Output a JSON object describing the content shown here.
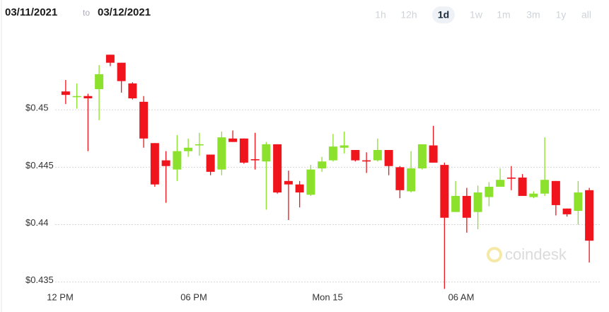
{
  "ui": {
    "date_from": "03/11/2021",
    "date_sep": "to",
    "date_to": "03/12/2021",
    "ranges": [
      "1h",
      "12h",
      "1d",
      "1w",
      "1m",
      "3m",
      "1y",
      "all"
    ],
    "active_range": "1d",
    "watermark": "coindesk"
  },
  "chart_data": {
    "type": "candlestick",
    "x": [
      0.25,
      0.75,
      1.25,
      1.75,
      2.25,
      2.75,
      3.25,
      3.75,
      4.25,
      4.75,
      5.25,
      5.75,
      6.25,
      6.75,
      7.25,
      7.75,
      8.25,
      8.75,
      9.25,
      9.75,
      10.25,
      10.75,
      11.25,
      11.75,
      12.25,
      12.75,
      13.25,
      13.75,
      14.25,
      14.75,
      15.25,
      15.75,
      16.25,
      16.75,
      17.25,
      17.75,
      18.25,
      18.75,
      19.25,
      19.75,
      20.25,
      20.75,
      21.25,
      21.75,
      22.25,
      22.75,
      23.25,
      23.75
    ],
    "open": [
      0.4516,
      0.4511,
      0.4512,
      0.4518,
      0.4548,
      0.4541,
      0.4523,
      0.4507,
      0.4471,
      0.4456,
      0.4448,
      0.4464,
      0.4469,
      0.4461,
      0.4448,
      0.4475,
      0.4475,
      0.4457,
      0.4455,
      0.447,
      0.4438,
      0.4435,
      0.4426,
      0.4449,
      0.4456,
      0.4467,
      0.4465,
      0.4456,
      0.4456,
      0.4465,
      0.445,
      0.4429,
      0.4449,
      0.4469,
      0.4452,
      0.4411,
      0.4425,
      0.4411,
      0.4424,
      0.4433,
      0.4441,
      0.4441,
      0.4424,
      0.4427,
      0.4438,
      0.4414,
      0.4412,
      0.443
    ],
    "high": [
      0.4526,
      0.4523,
      0.4514,
      0.4539,
      0.4548,
      0.4541,
      0.4524,
      0.4512,
      0.4471,
      0.4464,
      0.4478,
      0.4475,
      0.448,
      0.4461,
      0.4481,
      0.4482,
      0.4475,
      0.448,
      0.4472,
      0.447,
      0.4447,
      0.4438,
      0.4452,
      0.4459,
      0.4479,
      0.4481,
      0.4465,
      0.4463,
      0.4475,
      0.4465,
      0.4451,
      0.4464,
      0.447,
      0.4486,
      0.4454,
      0.4438,
      0.4432,
      0.4434,
      0.4437,
      0.4449,
      0.4451,
      0.4444,
      0.4429,
      0.4476,
      0.4438,
      0.4414,
      0.4438,
      0.4432
    ],
    "low": [
      0.4505,
      0.4501,
      0.4464,
      0.4491,
      0.4538,
      0.4515,
      0.4509,
      0.4467,
      0.4433,
      0.4419,
      0.4438,
      0.4459,
      0.446,
      0.4443,
      0.4443,
      0.4472,
      0.4453,
      0.4448,
      0.4413,
      0.4427,
      0.4404,
      0.4415,
      0.4425,
      0.4446,
      0.4455,
      0.4462,
      0.4455,
      0.4445,
      0.4455,
      0.4443,
      0.4423,
      0.4428,
      0.4448,
      0.4454,
      0.4344,
      0.4411,
      0.4393,
      0.4396,
      0.4416,
      0.4433,
      0.443,
      0.4425,
      0.4423,
      0.4425,
      0.4408,
      0.4407,
      0.44,
      0.4367
    ],
    "close": [
      0.4513,
      0.4512,
      0.451,
      0.4531,
      0.4541,
      0.4525,
      0.451,
      0.4475,
      0.4435,
      0.4451,
      0.4464,
      0.4467,
      0.447,
      0.4446,
      0.4476,
      0.4472,
      0.4454,
      0.4456,
      0.447,
      0.4428,
      0.4435,
      0.4428,
      0.4448,
      0.4455,
      0.4468,
      0.4469,
      0.4456,
      0.4455,
      0.4465,
      0.4451,
      0.443,
      0.4449,
      0.447,
      0.4454,
      0.4406,
      0.4425,
      0.4406,
      0.4428,
      0.4433,
      0.4439,
      0.444,
      0.4425,
      0.4427,
      0.4439,
      0.4417,
      0.4409,
      0.4428,
      0.4386
    ],
    "up_color": "#8be12c",
    "down_color": "#f0141c",
    "xlim": [
      -0.8,
      24.1
    ],
    "xticks": [
      {
        "value": 0,
        "label": "12 PM"
      },
      {
        "value": 6,
        "label": "06 PM"
      },
      {
        "value": 12,
        "label": "Mon 15"
      },
      {
        "value": 18,
        "label": "06 AM"
      }
    ],
    "ylim": [
      0.4343,
      0.4571
    ],
    "yticks": [
      {
        "value": 0.435,
        "label": "$0.435"
      },
      {
        "value": 0.44,
        "label": "$0.44"
      },
      {
        "value": 0.445,
        "label": "$0.445"
      },
      {
        "value": 0.45,
        "label": "$0.45"
      }
    ],
    "grid": true
  }
}
